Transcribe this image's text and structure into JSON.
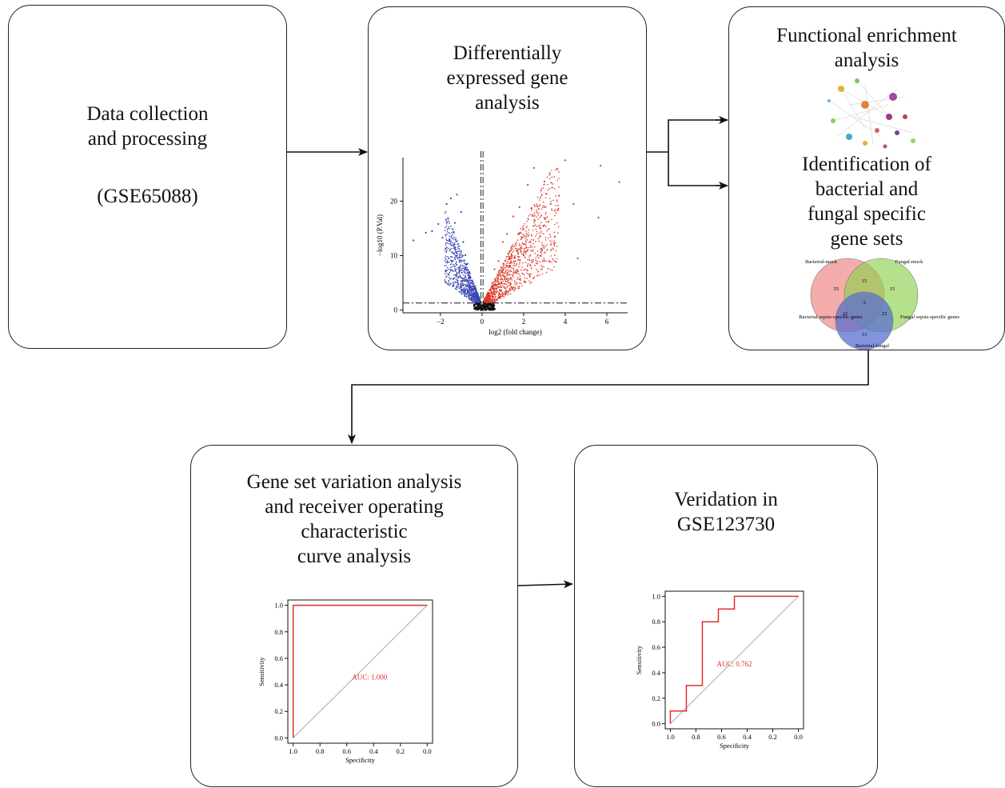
{
  "step1": {
    "title": "Data collection\nand processing",
    "subtitle": "(GSE65088)"
  },
  "step2": {
    "title": "Differentially\nexpressed gene\nanalysis"
  },
  "step3": {
    "title_enrich": "Functional enrichment\nanalysis",
    "title_sets": "Identification of\nbacterial and\nfungal specific\ngene sets"
  },
  "step4": {
    "title": "Gene set variation analysis\nand receiver operating\ncharacteristic\ncurve analysis"
  },
  "step5": {
    "title": "Veridation in\nGSE123730"
  },
  "venn": {
    "labels": {
      "bacterial_mock": "Bacterial-mock",
      "fungal_mock": "Fungal-mock",
      "bacterial_sepsis": "Bacterial sepsis-specific genes",
      "fungal_sepsis": "Fungal sepsis-specific genes",
      "bacterial_fungal": "Bacterial-fungal"
    },
    "counts": {
      "a_only": "55",
      "ab": "15",
      "b_only": "15",
      "abc": "3",
      "ac": "22",
      "bc": "23",
      "c_only": "13"
    },
    "colors": {
      "a": "#f08080",
      "b": "#8fd14f",
      "c": "#5a6fd0"
    }
  },
  "chart_data": [
    {
      "type": "scatter",
      "name": "volcano",
      "xlabel": "log2 (fold change)",
      "ylabel": "−log10 (P.Val)",
      "xticks": [
        "−2",
        "0",
        "2",
        "4",
        "6"
      ],
      "yticks": [
        "0",
        "10",
        "20"
      ],
      "xlim": [
        -3.8,
        7.0
      ],
      "ylim": [
        -0.5,
        28
      ],
      "series": [
        {
          "color": "#3a45b0",
          "points": [
            [
              -3.3,
              12.8
            ],
            [
              -2.7,
              14.2
            ],
            [
              -2.4,
              14.5
            ],
            [
              -2.1,
              15.8
            ],
            [
              -1.9,
              13.3
            ],
            [
              -1.7,
              19.5
            ],
            [
              -1.5,
              20.5
            ],
            [
              -1.3,
              16.0
            ],
            [
              -1.2,
              21.2
            ],
            [
              -1.0,
              18.0
            ],
            [
              -0.9,
              12.5
            ],
            [
              -0.8,
              10.1
            ],
            [
              -0.7,
              8.5
            ],
            [
              -0.6,
              6.8
            ],
            [
              -0.5,
              5.0
            ],
            [
              -0.4,
              3.8
            ],
            [
              -0.3,
              2.7
            ],
            [
              -0.2,
              1.9
            ],
            [
              -1.4,
              9.0
            ],
            [
              -1.1,
              7.5
            ],
            [
              -0.95,
              5.2
            ],
            [
              -1.6,
              6.5
            ]
          ]
        },
        {
          "color": "#d93a2b",
          "points": [
            [
              0.3,
              2.5
            ],
            [
              0.5,
              5.0
            ],
            [
              0.8,
              9.0
            ],
            [
              1.0,
              12.5
            ],
            [
              1.2,
              14.0
            ],
            [
              1.5,
              17.2
            ],
            [
              1.8,
              18.9
            ],
            [
              2.2,
              23.0
            ],
            [
              2.5,
              26.1
            ],
            [
              3.0,
              23.6
            ],
            [
              3.3,
              19.5
            ],
            [
              3.7,
              21.0
            ],
            [
              4.0,
              27.5
            ],
            [
              4.4,
              19.5
            ],
            [
              4.6,
              9.5
            ],
            [
              5.7,
              26.5
            ],
            [
              5.6,
              17.0
            ],
            [
              6.6,
              23.5
            ],
            [
              2.8,
              15.0
            ],
            [
              1.4,
              11.0
            ],
            [
              0.6,
              7.5
            ],
            [
              2.0,
              10.0
            ],
            [
              3.5,
              13.5
            ],
            [
              1.1,
              6.0
            ]
          ]
        },
        {
          "color": "#111111",
          "points": [
            [
              -0.2,
              0.1
            ],
            [
              -0.1,
              0.4
            ],
            [
              0.0,
              0.2
            ],
            [
              0.1,
              0.5
            ],
            [
              0.2,
              0.1
            ],
            [
              0.3,
              0.3
            ],
            [
              0.4,
              0.2
            ],
            [
              -0.3,
              0.3
            ],
            [
              0.5,
              0.1
            ],
            [
              0.6,
              0.2
            ]
          ]
        }
      ],
      "thresholds": {
        "y": 1.3,
        "x": [
          -0.05,
          0.05
        ]
      }
    },
    {
      "type": "line",
      "name": "roc_gsva",
      "xlabel": "Specificity",
      "ylabel": "Sensitivity",
      "xticks": [
        "1.0",
        "0.8",
        "0.6",
        "0.4",
        "0.2",
        "0.0"
      ],
      "yticks": [
        "0.0",
        "0.2",
        "0.4",
        "0.6",
        "0.8",
        "1.0"
      ],
      "xlim": [
        1.04,
        -0.04
      ],
      "ylim": [
        -0.04,
        1.04
      ],
      "annotation": "AUC: 1.000",
      "line_color": "#e0302a",
      "diag_color": "#aaaaaa",
      "x": [
        1.0,
        1.0,
        0.0
      ],
      "y": [
        0.0,
        1.0,
        1.0
      ]
    },
    {
      "type": "line",
      "name": "roc_validation",
      "xlabel": "Specificity",
      "ylabel": "Sensitivity",
      "xticks": [
        "1.0",
        "0.8",
        "0.6",
        "0.4",
        "0.2",
        "0.0"
      ],
      "yticks": [
        "0.0",
        "0.2",
        "0.4",
        "0.6",
        "0.8",
        "1.0"
      ],
      "xlim": [
        1.04,
        -0.04
      ],
      "ylim": [
        -0.04,
        1.04
      ],
      "annotation": "AUC: 0.762",
      "line_color": "#e0302a",
      "diag_color": "#aaaaaa",
      "x": [
        1.0,
        1.0,
        0.875,
        0.875,
        0.75,
        0.75,
        0.625,
        0.625,
        0.5,
        0.5,
        0.0
      ],
      "y": [
        0.0,
        0.1,
        0.1,
        0.3,
        0.3,
        0.8,
        0.8,
        0.9,
        0.9,
        1.0,
        1.0
      ]
    }
  ]
}
